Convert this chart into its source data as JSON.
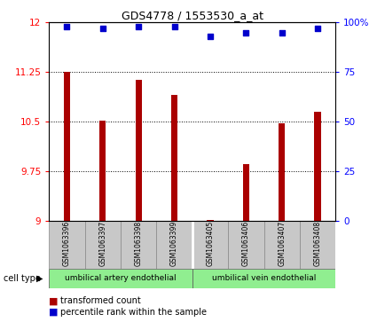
{
  "title": "GDS4778 / 1553530_a_at",
  "samples": [
    "GSM1063396",
    "GSM1063397",
    "GSM1063398",
    "GSM1063399",
    "GSM1063405",
    "GSM1063406",
    "GSM1063407",
    "GSM1063408"
  ],
  "bar_values": [
    11.25,
    10.52,
    11.13,
    10.9,
    9.01,
    9.85,
    10.48,
    10.65
  ],
  "percentile_values": [
    98,
    97,
    98,
    98,
    93,
    95,
    95,
    97
  ],
  "ylim_left": [
    9,
    12
  ],
  "ylim_right": [
    0,
    100
  ],
  "yticks_left": [
    9,
    9.75,
    10.5,
    11.25,
    12
  ],
  "yticks_right": [
    0,
    25,
    50,
    75,
    100
  ],
  "bar_color": "#aa0000",
  "dot_color": "#0000cc",
  "bar_width": 0.18,
  "groups": [
    {
      "label": "umbilical artery endothelial",
      "indices": [
        0,
        1,
        2,
        3
      ]
    },
    {
      "label": "umbilical vein endothelial",
      "indices": [
        4,
        5,
        6,
        7
      ]
    }
  ],
  "cell_type_label": "cell type",
  "legend_bar_label": "transformed count",
  "legend_dot_label": "percentile rank within the sample",
  "label_area_bg": "#c8c8c8",
  "group_color": "#90ee90"
}
